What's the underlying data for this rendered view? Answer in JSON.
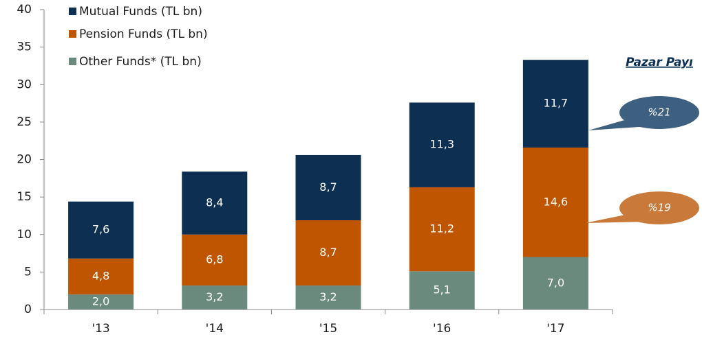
{
  "chart_data": {
    "type": "stacked_bar",
    "categories": [
      "'13",
      "'14",
      "'15",
      "'16",
      "'17"
    ],
    "series": [
      {
        "name": "Mutual Funds (TL bn)",
        "color": "#0d2f52",
        "values": [
          7.6,
          8.4,
          8.7,
          11.3,
          11.7
        ],
        "value_labels": [
          "7,6",
          "8,4",
          "8,7",
          "11,3",
          "11,7"
        ]
      },
      {
        "name": "Pension Funds (TL bn)",
        "color": "#c05500",
        "values": [
          4.8,
          6.8,
          8.7,
          11.2,
          14.6
        ],
        "value_labels": [
          "4,8",
          "6,8",
          "8,7",
          "11,2",
          "14,6"
        ]
      },
      {
        "name": "Other Funds* (TL bn)",
        "color": "#6b8a7e",
        "values": [
          2.0,
          3.2,
          3.2,
          5.1,
          7.0
        ],
        "value_labels": [
          "2,0",
          "3,2",
          "3,2",
          "5,1",
          "7,0"
        ]
      }
    ],
    "ylim": [
      0,
      40
    ],
    "yticks": [
      0,
      5,
      10,
      15,
      20,
      25,
      30,
      35,
      40
    ],
    "grid": false,
    "annotations": [
      {
        "text": "Pazar Payı"
      },
      {
        "text": "%21",
        "color": "#3d5f80"
      },
      {
        "text": "%19",
        "color": "#c97a3a"
      }
    ]
  }
}
